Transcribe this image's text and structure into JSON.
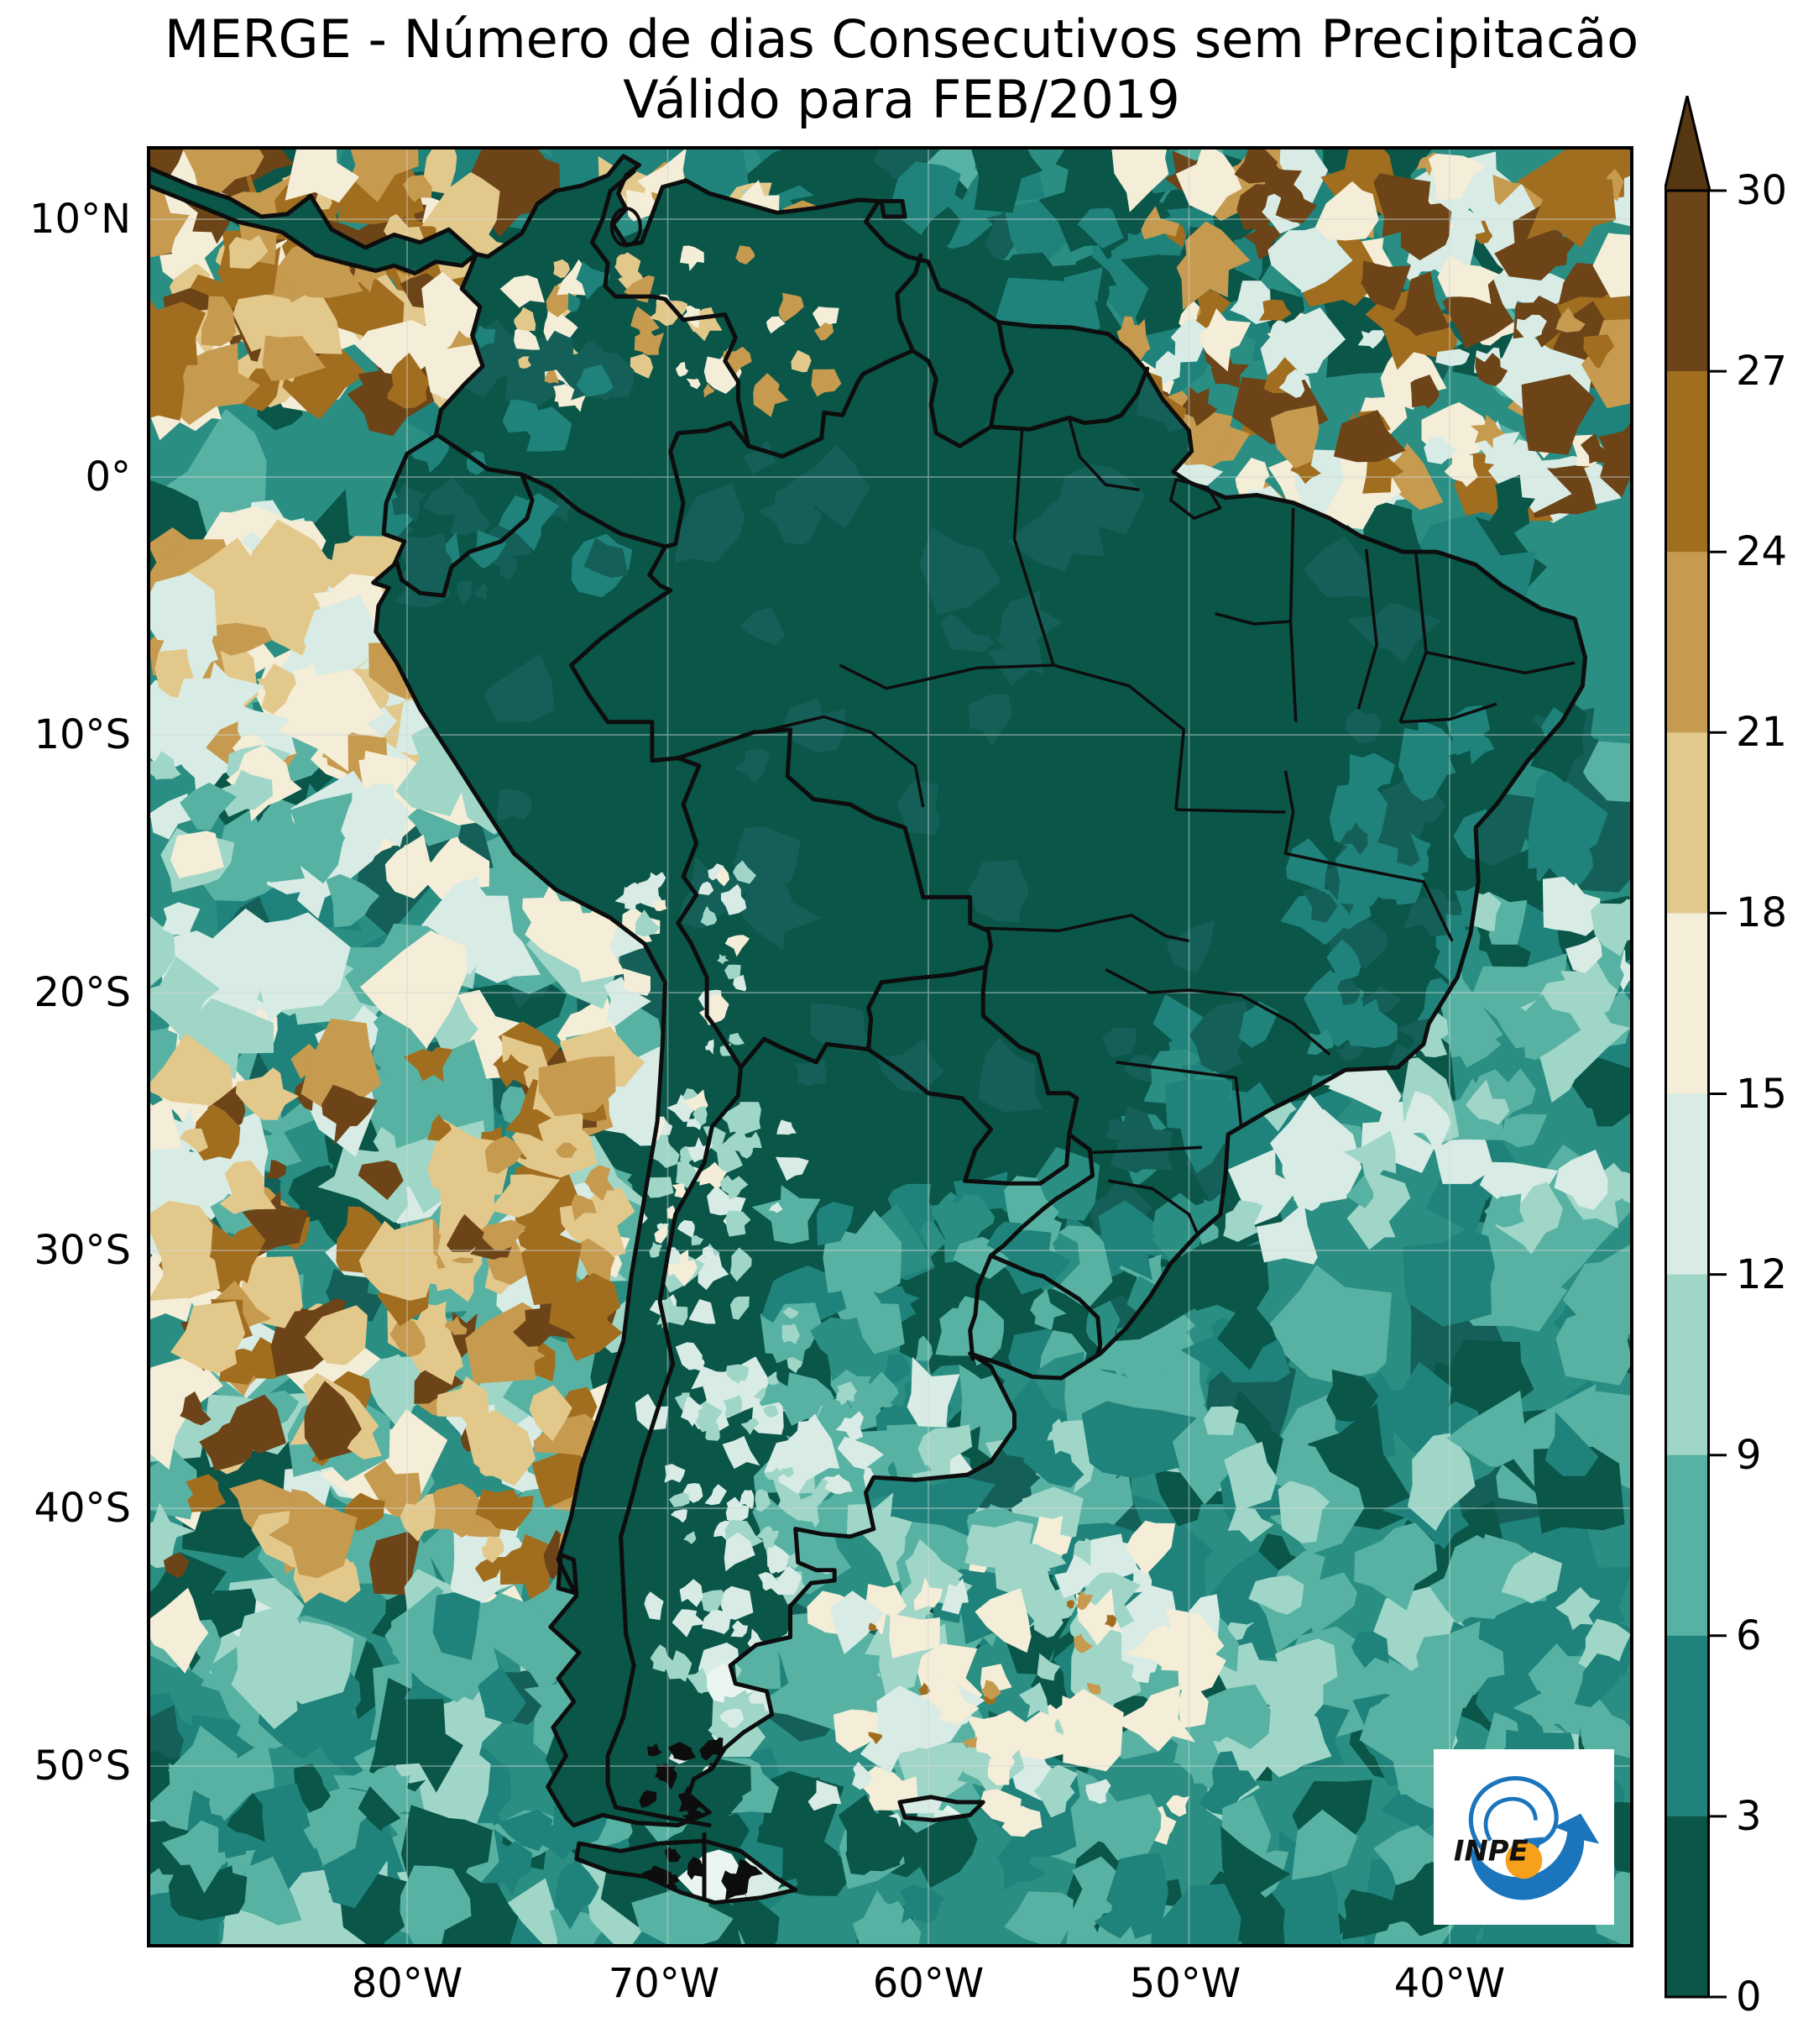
{
  "title": {
    "line1": "MERGE - Número de dias Consecutivos sem Precipitacão",
    "line2": "Válido para FEB/2019"
  },
  "axes": {
    "lat_labels": [
      "10°N",
      "0°",
      "10°S",
      "20°S",
      "30°S",
      "40°S",
      "50°S"
    ],
    "lon_labels": [
      "80°W",
      "70°W",
      "60°W",
      "50°W",
      "40°W"
    ]
  },
  "colorbar": {
    "tick_labels_top_to_bottom": [
      "30",
      "27",
      "24",
      "21",
      "18",
      "15",
      "12",
      "9",
      "6",
      "3",
      "0"
    ],
    "segment_colors_top_to_bottom": [
      "#6C4417",
      "#A16D1F",
      "#C69A4F",
      "#E3C88C",
      "#F4EDD8",
      "#D8ECE5",
      "#9FD6C8",
      "#58B2A3",
      "#1F837B",
      "#0A5649"
    ],
    "over_arrow_color": "#553711",
    "outline_color": "#000000",
    "value_min": 0,
    "value_max": 30,
    "value_step": 3
  },
  "palette": {
    "teal_darkest": "#0A5649",
    "teal_dark": "#146058",
    "teal_mid": "#1F837B",
    "teal_base": "#2A8E82",
    "teal_light": "#58B2A3",
    "teal_lighter": "#9FD6C8",
    "teal_pale": "#D8ECE5",
    "near_white": "#EAF5F0",
    "cream": "#F4EDD8",
    "sand": "#E3C88C",
    "tan": "#C69A4F",
    "brown": "#A16D1F",
    "brown_dark": "#6C4417",
    "ink": "#0d0d0d",
    "grid": "#cfd8d6"
  },
  "logo": {
    "text": "INPE",
    "blue": "#1B75BC",
    "orange": "#F6A01B",
    "text_color": "#111111"
  }
}
